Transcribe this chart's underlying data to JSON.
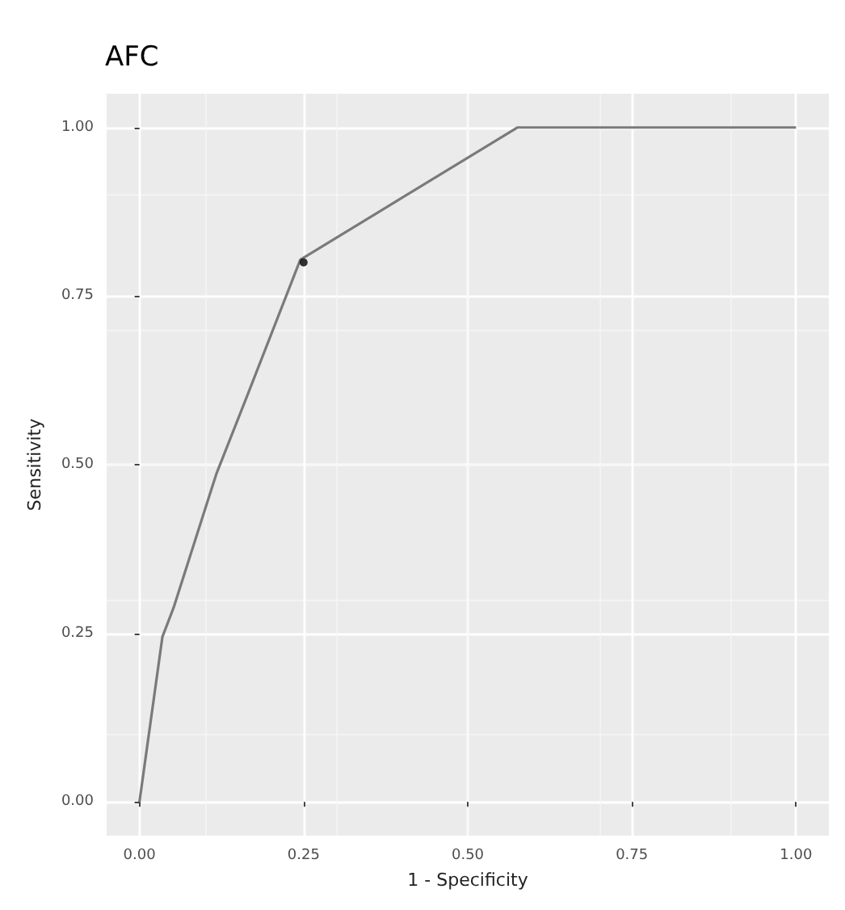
{
  "chart_data": {
    "type": "line",
    "title": "AFC",
    "xlabel": "1 - Specificity",
    "ylabel": "Sensitivity",
    "xlim": [
      -0.05,
      1.05
    ],
    "ylim": [
      -0.05,
      1.05
    ],
    "xticks": [
      {
        "value": 0,
        "label": "0.00"
      },
      {
        "value": 0.25,
        "label": "0.25"
      },
      {
        "value": 0.5,
        "label": "0.50"
      },
      {
        "value": 0.75,
        "label": "0.75"
      },
      {
        "value": 1,
        "label": "1.00"
      }
    ],
    "yticks": [
      {
        "value": 0,
        "label": "0.00"
      },
      {
        "value": 0.25,
        "label": "0.25"
      },
      {
        "value": 0.5,
        "label": "0.50"
      },
      {
        "value": 0.75,
        "label": "0.75"
      },
      {
        "value": 1,
        "label": "1.00"
      }
    ],
    "grid": true,
    "marker": "none",
    "series": [
      {
        "color": "#7a7a7a",
        "x": [
          0,
          0.035,
          0.052,
          0.117,
          0.164,
          0.245,
          0.576,
          1
        ],
        "values": [
          0,
          0.245,
          0.288,
          0.486,
          0.602,
          0.804,
          1,
          1
        ]
      },
      {
        "type": "scatter",
        "color": "#000000",
        "marker": "circle",
        "x": [
          0.25
        ],
        "values": [
          0.8
        ]
      }
    ]
  }
}
